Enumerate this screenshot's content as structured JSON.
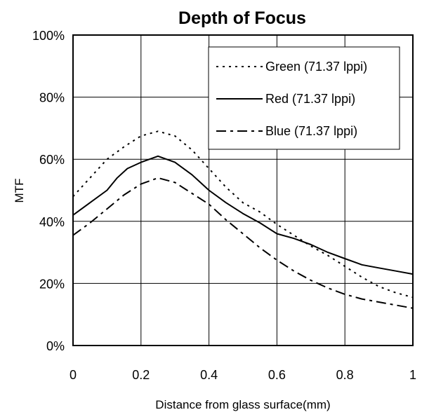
{
  "chart_data": {
    "type": "line",
    "title": "Depth of Focus",
    "xlabel": "Distance from glass surface(mm)",
    "ylabel": "MTF",
    "xlim": [
      0,
      1
    ],
    "ylim": [
      0,
      100
    ],
    "x_ticks": [
      0,
      0.2,
      0.4,
      0.6,
      0.8,
      1
    ],
    "x_tick_labels": [
      "0",
      "0.2",
      "0.4",
      "0.6",
      "0.8",
      "1"
    ],
    "y_ticks": [
      0,
      20,
      40,
      60,
      80,
      100
    ],
    "y_tick_labels": [
      "0%",
      "20%",
      "40%",
      "60%",
      "80%",
      "100%"
    ],
    "grid": true,
    "legend_position": "top-right",
    "series": [
      {
        "name": "Green (71.37 lppi)",
        "line_style": "dotted",
        "color": "#000000",
        "x": [
          0,
          0.05,
          0.1,
          0.15,
          0.2,
          0.25,
          0.3,
          0.35,
          0.4,
          0.45,
          0.5,
          0.55,
          0.6,
          0.65,
          0.7,
          0.75,
          0.8,
          0.85,
          0.9,
          0.95,
          1.0
        ],
        "y": [
          48,
          54,
          60,
          64,
          67.5,
          69,
          67.5,
          63,
          57,
          51,
          46,
          43,
          39,
          35.5,
          32,
          29,
          25.5,
          22,
          19,
          17,
          15.5
        ]
      },
      {
        "name": "Red (71.37 lppi)",
        "line_style": "solid",
        "color": "#000000",
        "x": [
          0,
          0.05,
          0.1,
          0.13,
          0.16,
          0.2,
          0.25,
          0.3,
          0.35,
          0.4,
          0.45,
          0.5,
          0.55,
          0.6,
          0.65,
          0.7,
          0.75,
          0.8,
          0.85,
          0.9,
          0.95,
          1.0
        ],
        "y": [
          42,
          46,
          50,
          54,
          57,
          59,
          61,
          59,
          55,
          50,
          46,
          42.5,
          39.5,
          36,
          34.5,
          32.5,
          30,
          28,
          26,
          25,
          24,
          23
        ]
      },
      {
        "name": "Blue (71.37 lppi)",
        "line_style": "dash-dot",
        "color": "#000000",
        "x": [
          0,
          0.05,
          0.1,
          0.15,
          0.2,
          0.25,
          0.3,
          0.35,
          0.4,
          0.45,
          0.5,
          0.55,
          0.6,
          0.65,
          0.7,
          0.75,
          0.8,
          0.85,
          0.9,
          0.95,
          1.0
        ],
        "y": [
          35.5,
          39.5,
          44,
          48.5,
          52,
          54,
          52.5,
          49,
          45.5,
          40.5,
          36,
          31.5,
          27.5,
          24,
          21,
          18.5,
          16.5,
          15,
          14,
          13,
          12
        ]
      }
    ]
  }
}
